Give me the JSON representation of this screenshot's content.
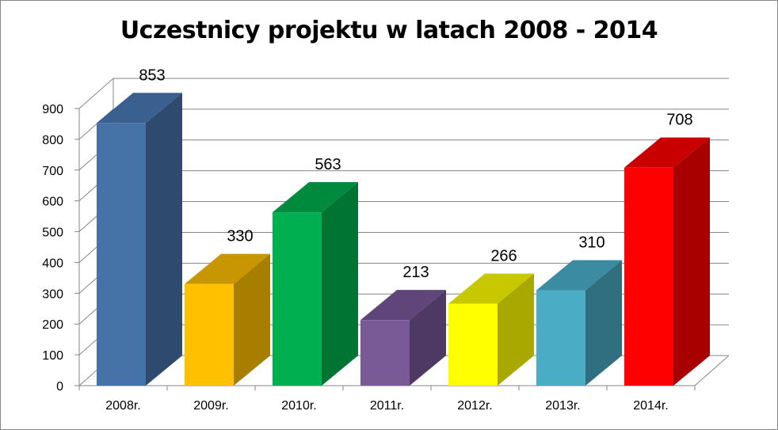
{
  "chart_data": {
    "type": "bar",
    "title": "Uczestnicy projektu w latach 2008 - 2014",
    "xlabel": "",
    "ylabel": "",
    "categories": [
      "2008r.",
      "2009r.",
      "2010r.",
      "2011r.",
      "2012r.",
      "2013r.",
      "2014r."
    ],
    "values": [
      853,
      330,
      563,
      213,
      266,
      310,
      708
    ],
    "data_labels": [
      "853",
      "330",
      "563",
      "213",
      "266",
      "310",
      "708"
    ],
    "ylim": [
      0,
      900
    ],
    "yticks": [
      0,
      100,
      200,
      300,
      400,
      500,
      600,
      700,
      800,
      900
    ],
    "ytick_labels": [
      "0",
      "100",
      "200",
      "300",
      "400",
      "500",
      "600",
      "700",
      "800",
      "900"
    ],
    "grid": true,
    "legend": "none",
    "style": "3d-column",
    "bar_colors": [
      {
        "front": "#4572A7",
        "side": "#2E4A6E",
        "top": "#3A6090"
      },
      {
        "front": "#FFC000",
        "side": "#A87E00",
        "top": "#C89600"
      },
      {
        "front": "#00B050",
        "side": "#007533",
        "top": "#008A3E"
      },
      {
        "front": "#7A5A96",
        "side": "#4E3964",
        "top": "#5F457A"
      },
      {
        "front": "#FFFF00",
        "side": "#A8A800",
        "top": "#C8C800"
      },
      {
        "front": "#4BACC6",
        "side": "#2F6F80",
        "top": "#3B8CA2"
      },
      {
        "front": "#FF0000",
        "side": "#A80000",
        "top": "#C80000"
      }
    ],
    "grid_color": "#868686"
  }
}
